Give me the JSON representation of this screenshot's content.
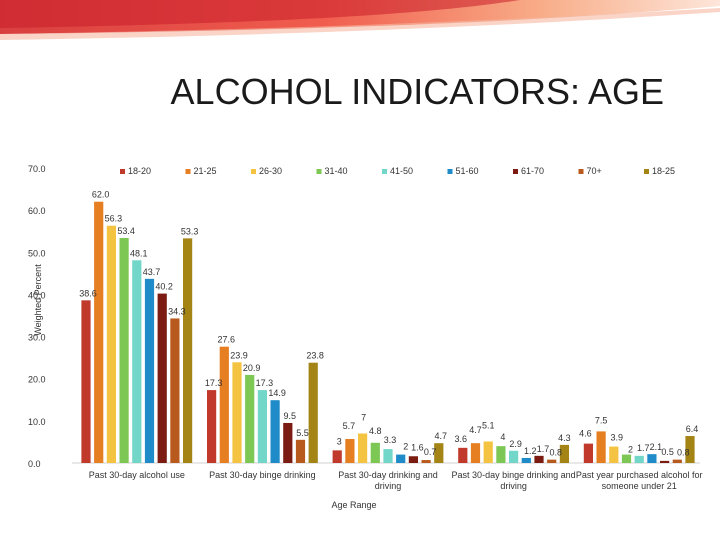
{
  "slide_title": "ALCOHOL INDICATORS: AGE",
  "chart_data": {
    "type": "bar",
    "title": "",
    "xlabel": "Age Range",
    "ylabel": "Weighted Percent",
    "ylim": [
      0,
      70
    ],
    "yticks": [
      "0.0",
      "10.0",
      "20.0",
      "30.0",
      "40.0",
      "50.0",
      "60.0",
      "70.0"
    ],
    "legend_position": "top",
    "categories": [
      [
        "Past 30-day alcohol use"
      ],
      [
        "Past 30-day binge drinking"
      ],
      [
        "Past 30-day drinking and",
        "driving"
      ],
      [
        "Past 30-day binge drinking and",
        "driving"
      ],
      [
        "Past year purchased alcohol for",
        "someone under 21"
      ]
    ],
    "series": [
      {
        "name": "18-20",
        "color": "#c0392b",
        "values": [
          38.6,
          17.3,
          3,
          3.6,
          4.6
        ],
        "labels": [
          "38.6",
          "17.3",
          "3",
          "3.6",
          "4.6"
        ]
      },
      {
        "name": "21-25",
        "color": "#e67e22",
        "values": [
          62.0,
          27.6,
          5.7,
          4.7,
          7.5
        ],
        "labels": [
          "62.0",
          "27.6",
          "5.7",
          "4.7",
          "7.5"
        ]
      },
      {
        "name": "26-30",
        "color": "#f5c342",
        "values": [
          56.3,
          23.9,
          7,
          5.1,
          3.9
        ],
        "labels": [
          "56.3",
          "23.9",
          "7",
          "5.1",
          "3.9"
        ]
      },
      {
        "name": "31-40",
        "color": "#7dc855",
        "values": [
          53.4,
          20.9,
          4.8,
          4,
          2
        ],
        "labels": [
          "53.4",
          "20.9",
          "4.8",
          "4",
          "2"
        ]
      },
      {
        "name": "41-50",
        "color": "#72d6c9",
        "values": [
          48.1,
          17.3,
          3.3,
          2.9,
          1.7
        ],
        "labels": [
          "48.1",
          "17.3",
          "3.3",
          "2.9",
          "1.7"
        ]
      },
      {
        "name": "51-60",
        "color": "#1f8bc9",
        "values": [
          43.7,
          14.9,
          2,
          1.2,
          2.1
        ],
        "labels": [
          "43.7",
          "14.9",
          "2",
          "1.2",
          "2.1"
        ]
      },
      {
        "name": "61-70",
        "color": "#7b1b12",
        "values": [
          40.2,
          9.5,
          1.6,
          1.7,
          0.5
        ],
        "labels": [
          "40.2",
          "9.5",
          "1.6",
          "1.7",
          "0.5"
        ]
      },
      {
        "name": "70+",
        "color": "#b85a1e",
        "values": [
          34.3,
          5.5,
          0.7,
          0.8,
          0.8
        ],
        "labels": [
          "34.3",
          "5.5",
          "0.7",
          "0.8",
          "0.8"
        ]
      },
      {
        "name": "18-25",
        "color": "#a38414",
        "values": [
          53.3,
          23.8,
          4.7,
          4.3,
          6.4
        ],
        "labels": [
          "53.3",
          "23.8",
          "4.7",
          "4.3",
          "6.4"
        ]
      }
    ]
  }
}
